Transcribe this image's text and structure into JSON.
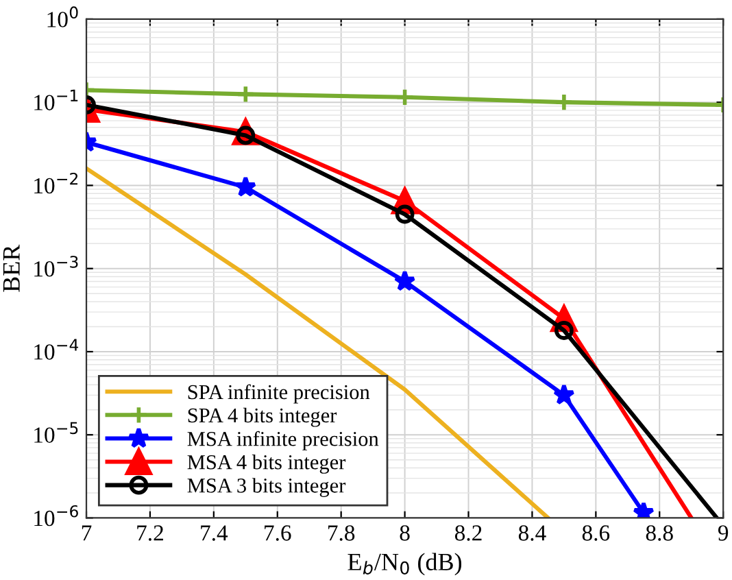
{
  "chart_data": {
    "type": "line",
    "xlabel": "E$_{b}$/N$_{0}$ (dB)",
    "ylabel": "BER",
    "log": "y",
    "xlim": [
      7,
      9
    ],
    "xticks": [
      7,
      7.2,
      7.4,
      7.6,
      7.8,
      8,
      8.2,
      8.4,
      8.6,
      8.8,
      9
    ],
    "ylim": [
      1e-06,
      1
    ],
    "yticks": [
      {
        "value": 1e-06,
        "label": "10$^{−6}$"
      },
      {
        "value": 1e-05,
        "label": "10$^{−5}$"
      },
      {
        "value": 0.0001,
        "label": "10$^{−4}$"
      },
      {
        "value": 0.001,
        "label": "10$^{−3}$"
      },
      {
        "value": 0.01,
        "label": "10$^{−2}$"
      },
      {
        "value": 0.1,
        "label": "10$^{−1}$"
      },
      {
        "value": 1,
        "label": "10$^{0}$"
      }
    ],
    "grid": true,
    "legend": "bottom left",
    "line_style": "solid",
    "series": [
      {
        "name": "SPA infinite precision",
        "color": "#edb120",
        "marker": "none",
        "x": [
          7,
          7.5,
          8,
          8.45
        ],
        "values": [
          0.016,
          0.00085,
          3.5e-05,
          1e-06
        ]
      },
      {
        "name": "SPA 4 bits integer",
        "color": "#77ac30",
        "marker": "cross",
        "x": [
          7,
          7.5,
          8,
          8.5,
          9
        ],
        "values": [
          0.14,
          0.125,
          0.115,
          0.1,
          0.093
        ]
      },
      {
        "name": "MSA infinite precision",
        "color": "#0000ff",
        "marker": "star",
        "x": [
          7,
          7.5,
          8,
          8.5,
          8.75
        ],
        "values": [
          0.033,
          0.0095,
          0.0007,
          3e-05,
          1.15e-06
        ]
      },
      {
        "name": "MSA 4 bits integer",
        "color": "#ff0000",
        "marker": "triangle",
        "x": [
          7,
          7.5,
          8,
          8.5,
          8.9
        ],
        "values": [
          0.082,
          0.044,
          0.0065,
          0.00025,
          1e-06
        ]
      },
      {
        "name": "MSA 3 bits integer",
        "color": "#000000",
        "marker": "circle",
        "x": [
          7,
          7.5,
          8,
          8.5,
          8.98
        ],
        "values": [
          0.093,
          0.04,
          0.0045,
          0.00018,
          1e-06
        ]
      }
    ]
  }
}
